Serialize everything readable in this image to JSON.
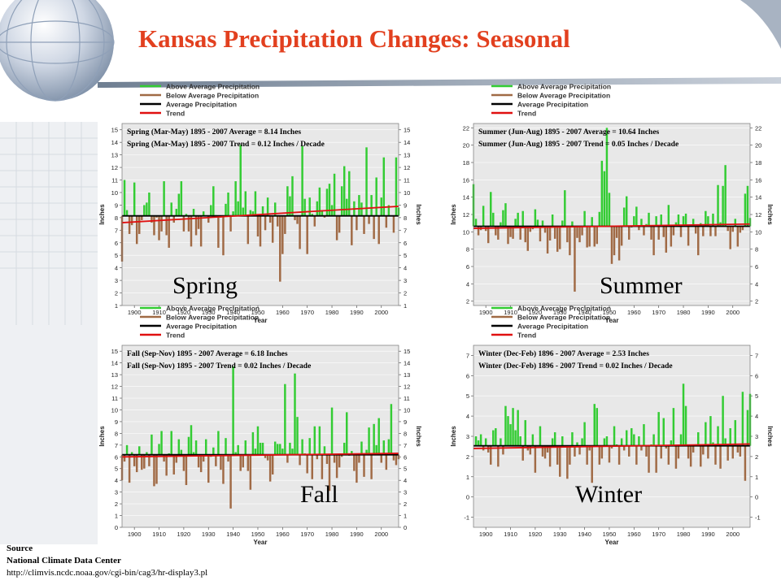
{
  "title": "Kansas Precipitation Changes: Seasonal",
  "legend": [
    {
      "label": "Above Average Precipitation",
      "color": "#33cc33"
    },
    {
      "label": "Below Average Precipitation",
      "color": "#a06a45"
    },
    {
      "label": "Average Precipitation",
      "color": "#000000"
    },
    {
      "label": "Trend",
      "color": "#e01010"
    }
  ],
  "source": {
    "heading": "Source",
    "org": "National Climate Data Center",
    "url": "http://climvis.ncdc.noaa.gov/cgi-bin/cag3/hr-display3.pl"
  },
  "colors": {
    "above": "#33cc33",
    "below": "#a06a45",
    "average": "#000000",
    "trend": "#e01010",
    "plot_bg": "#e8e8e8",
    "title": "#e2401f"
  },
  "chart_data": [
    {
      "type": "bar",
      "season_label": "Spring",
      "note_average": "Spring (Mar-May) 1895 - 2007 Average = 8.14 Inches",
      "note_trend": "Spring (Mar-May) 1895 - 2007 Trend = 0.12 Inches / Decade",
      "xlabel": "Year",
      "ylabel": "Inches",
      "xlim": [
        1895,
        2007
      ],
      "xticks": [
        1900,
        1910,
        1920,
        1930,
        1940,
        1950,
        1960,
        1970,
        1980,
        1990,
        2000
      ],
      "ylim": [
        1,
        15.5
      ],
      "yticks": [
        1,
        2,
        3,
        4,
        5,
        6,
        7,
        8,
        9,
        10,
        11,
        12,
        13,
        14,
        15
      ],
      "average": 8.14,
      "trend": [
        7.6,
        8.9
      ],
      "start_year": 1895,
      "values": [
        4.5,
        11.0,
        8.6,
        6.7,
        7.4,
        10.8,
        5.9,
        6.7,
        7.8,
        9.0,
        9.2,
        10.0,
        7.6,
        6.6,
        8.0,
        6.2,
        6.9,
        10.9,
        6.6,
        5.6,
        9.2,
        7.6,
        8.7,
        9.9,
        10.9,
        6.9,
        8.3,
        6.9,
        5.7,
        8.7,
        6.6,
        7.1,
        5.7,
        8.5,
        8.1,
        7.6,
        9.0,
        10.5,
        8.2,
        5.6,
        8.0,
        5.0,
        9.1,
        10.0,
        6.9,
        8.5,
        10.9,
        9.3,
        13.8,
        8.8,
        10.1,
        5.9,
        8.6,
        8.5,
        10.1,
        6.5,
        5.7,
        8.9,
        7.0,
        9.6,
        7.6,
        6.0,
        9.2,
        7.3,
        2.9,
        5.1,
        6.7,
        10.5,
        9.7,
        11.3,
        7.8,
        7.5,
        5.5,
        13.7,
        9.5,
        5.1,
        9.6,
        8.3,
        7.3,
        9.3,
        10.4,
        8.6,
        8.0,
        10.3,
        10.7,
        9.0,
        11.5,
        6.2,
        6.8,
        10.5,
        12.1,
        9.5,
        11.7,
        5.8,
        9.3,
        7.0,
        9.8,
        9.2,
        6.7,
        13.6,
        7.5,
        9.8,
        6.3,
        11.2,
        5.9,
        9.6,
        12.8,
        7.2,
        9.0,
        8.1,
        6.8,
        12.8,
        8.8
      ]
    },
    {
      "type": "bar",
      "season_label": "Summer",
      "note_average": "Summer (Jun-Aug) 1895 - 2007 Average = 10.64 Inches",
      "note_trend": "Summer (Jun-Aug) 1895 - 2007 Trend = 0.05 Inches / Decade",
      "xlabel": "Year",
      "ylabel": "Inches",
      "xlim": [
        1895,
        2007
      ],
      "xticks": [
        1900,
        1910,
        1920,
        1930,
        1940,
        1950,
        1960,
        1970,
        1980,
        1990,
        2000
      ],
      "ylim": [
        1.5,
        22.5
      ],
      "yticks": [
        2,
        4,
        6,
        8,
        10,
        12,
        14,
        16,
        18,
        20,
        22
      ],
      "average": 10.64,
      "trend": [
        10.4,
        10.9
      ],
      "start_year": 1895,
      "values": [
        15.5,
        11.5,
        9.6,
        10.2,
        13.0,
        10.1,
        8.7,
        14.6,
        12.2,
        9.6,
        9.1,
        11.1,
        12.5,
        13.3,
        8.6,
        9.4,
        9.2,
        11.5,
        12.2,
        9.1,
        12.4,
        8.8,
        7.8,
        10.0,
        10.3,
        12.6,
        11.4,
        8.9,
        11.3,
        9.9,
        7.5,
        9.0,
        12.0,
        9.2,
        7.7,
        8.0,
        11.3,
        14.8,
        8.8,
        7.3,
        11.2,
        3.1,
        9.3,
        8.8,
        9.6,
        12.4,
        8.2,
        8.3,
        11.7,
        8.3,
        8.6,
        12.3,
        18.2,
        17.0,
        22.0,
        14.5,
        6.3,
        7.3,
        9.3,
        6.7,
        8.4,
        12.8,
        14.1,
        9.1,
        10.5,
        11.8,
        12.9,
        10.2,
        11.5,
        9.6,
        10.9,
        12.2,
        9.1,
        7.3,
        11.8,
        9.1,
        12.0,
        9.4,
        7.6,
        13.1,
        8.3,
        9.6,
        11.1,
        12.0,
        9.4,
        11.8,
        12.1,
        8.4,
        10.7,
        11.5,
        9.8,
        7.3,
        11.0,
        9.5,
        12.4,
        11.8,
        9.5,
        12.1,
        9.5,
        15.4,
        11.1,
        15.3,
        17.7,
        10.1,
        8.0,
        10.0,
        11.5,
        8.3,
        9.9,
        10.2,
        14.4,
        15.3,
        11.6
      ]
    },
    {
      "type": "bar",
      "season_label": "Fall",
      "note_average": "Fall (Sep-Nov) 1895 - 2007 Average = 6.18 Inches",
      "note_trend": "Fall (Sep-Nov) 1895 - 2007 Trend = 0.02 Inches / Decade",
      "xlabel": "Year",
      "ylabel": "Inches",
      "xlim": [
        1895,
        2007
      ],
      "xticks": [
        1900,
        1910,
        1920,
        1930,
        1940,
        1950,
        1960,
        1970,
        1980,
        1990,
        2000
      ],
      "ylim": [
        0,
        15.5
      ],
      "yticks": [
        0,
        1,
        2,
        3,
        4,
        5,
        6,
        7,
        8,
        9,
        10,
        11,
        12,
        13,
        14,
        15
      ],
      "average": 6.18,
      "trend": [
        6.0,
        6.3
      ],
      "start_year": 1895,
      "values": [
        4.0,
        5.6,
        7.0,
        3.8,
        6.4,
        5.2,
        4.7,
        6.9,
        4.9,
        5.0,
        6.4,
        5.2,
        7.9,
        3.5,
        3.7,
        7.1,
        8.2,
        5.6,
        4.4,
        6.3,
        8.2,
        4.5,
        5.5,
        7.5,
        6.6,
        4.8,
        3.6,
        7.7,
        8.7,
        6.4,
        7.4,
        5.1,
        4.7,
        5.6,
        7.5,
        3.8,
        6.0,
        6.8,
        5.2,
        8.2,
        4.9,
        3.7,
        7.6,
        5.6,
        1.6,
        13.7,
        6.4,
        7.0,
        4.8,
        5.1,
        7.4,
        4.8,
        3.2,
        8.1,
        6.7,
        8.6,
        7.2,
        7.2,
        5.9,
        5.7,
        3.9,
        4.5,
        7.3,
        7.1,
        7.1,
        6.7,
        12.2,
        5.5,
        7.2,
        6.7,
        13.1,
        9.4,
        5.3,
        7.5,
        6.3,
        4.6,
        7.6,
        4.1,
        8.6,
        5.8,
        8.6,
        4.1,
        6.9,
        5.4,
        3.1,
        10.2,
        5.5,
        4.2,
        5.1,
        6.0,
        7.2,
        9.8,
        6.1,
        6.5,
        4.8,
        3.8,
        5.5,
        7.3,
        4.3,
        6.6,
        8.5,
        4.1,
        8.8,
        7.0,
        9.3,
        5.5,
        7.4,
        4.9,
        7.5,
        10.5,
        5.7,
        5.3,
        5.8
      ]
    },
    {
      "type": "bar",
      "season_label": "Winter",
      "note_average": "Winter (Dec-Feb) 1896 - 2007 Average = 2.53 Inches",
      "note_trend": "Winter (Dec-Feb) 1896 - 2007 Trend = 0.02 Inches / Decade",
      "xlabel": "Year",
      "ylabel": "Inches",
      "xlim": [
        1895,
        2007
      ],
      "xticks": [
        1900,
        1910,
        1920,
        1930,
        1940,
        1950,
        1960,
        1970,
        1980,
        1990,
        2000
      ],
      "ylim": [
        -1.5,
        7.5
      ],
      "yticks": [
        -1,
        0,
        1,
        2,
        3,
        4,
        5,
        6,
        7
      ],
      "average": 2.53,
      "trend": [
        2.4,
        2.62
      ],
      "start_year": 1896,
      "values": [
        3.0,
        2.8,
        3.1,
        2.3,
        2.9,
        2.2,
        1.6,
        3.3,
        3.4,
        1.5,
        2.9,
        2.1,
        4.5,
        4.0,
        3.6,
        4.4,
        3.3,
        4.3,
        3.0,
        1.8,
        3.8,
        2.3,
        2.1,
        3.1,
        1.2,
        2.5,
        3.5,
        2.0,
        1.9,
        2.2,
        1.5,
        2.9,
        3.2,
        1.6,
        1.0,
        3.0,
        2.5,
        0.9,
        1.6,
        3.2,
        2.0,
        2.7,
        2.1,
        2.9,
        3.7,
        1.6,
        2.3,
        0.7,
        4.6,
        4.4,
        1.6,
        1.9,
        2.9,
        3.0,
        1.7,
        2.4,
        3.5,
        2.6,
        1.6,
        2.9,
        2.3,
        3.3,
        2.0,
        3.4,
        3.1,
        1.6,
        3.0,
        2.3,
        3.6,
        2.0,
        1.2,
        2.6,
        3.1,
        1.2,
        4.2,
        1.9,
        3.9,
        2.4,
        1.6,
        2.8,
        4.4,
        1.4,
        1.9,
        3.1,
        5.6,
        4.5,
        1.9,
        1.5,
        2.2,
        2.6,
        3.2,
        1.5,
        2.1,
        3.7,
        1.9,
        4.0,
        2.7,
        1.6,
        3.5,
        1.4,
        5.0,
        2.9,
        1.8,
        3.4,
        1.9,
        3.8,
        2.2,
        2.0,
        5.2,
        0.8,
        4.3,
        5.1
      ]
    }
  ]
}
